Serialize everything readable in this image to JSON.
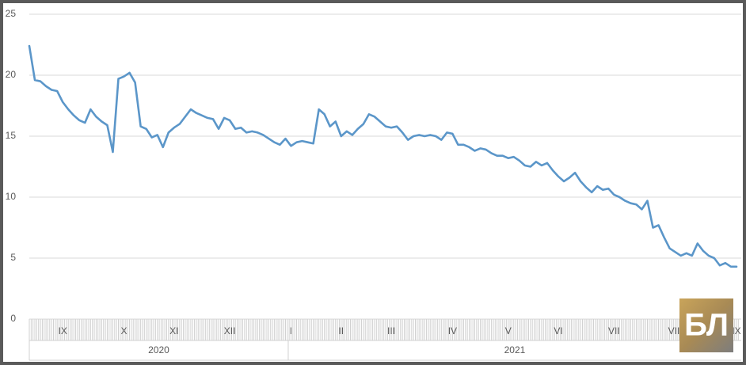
{
  "chart_data": {
    "type": "line",
    "color": "#5b96c9",
    "grid": true,
    "ylim": [
      0,
      25
    ],
    "yticks": [
      0,
      5,
      10,
      15,
      20,
      25
    ],
    "categories": [
      null,
      null,
      null,
      null,
      null,
      null,
      "IX",
      null,
      null,
      null,
      null,
      null,
      null,
      null,
      null,
      null,
      null,
      "X",
      null,
      null,
      null,
      null,
      null,
      null,
      null,
      null,
      "XI",
      null,
      null,
      null,
      null,
      null,
      null,
      null,
      null,
      null,
      "XII",
      null,
      null,
      null,
      null,
      null,
      null,
      null,
      null,
      null,
      null,
      "I",
      null,
      null,
      null,
      null,
      null,
      null,
      null,
      null,
      "II",
      null,
      null,
      null,
      null,
      null,
      null,
      null,
      null,
      "III",
      null,
      null,
      null,
      null,
      null,
      null,
      null,
      null,
      null,
      null,
      "IV",
      null,
      null,
      null,
      null,
      null,
      null,
      null,
      null,
      null,
      "V",
      null,
      null,
      null,
      null,
      null,
      null,
      null,
      null,
      "VI",
      null,
      null,
      null,
      null,
      null,
      null,
      null,
      null,
      null,
      "VII",
      null,
      null,
      null,
      null,
      null,
      null,
      null,
      null,
      null,
      null,
      "VIII",
      null,
      null,
      null,
      null,
      null,
      null,
      null,
      null,
      null,
      null,
      "IX"
    ],
    "year_categories": [
      "2020",
      null,
      null,
      null,
      null,
      null,
      null,
      null,
      null,
      null,
      null,
      null,
      null,
      null,
      null,
      null,
      null,
      null,
      null,
      null,
      null,
      null,
      null,
      null,
      null,
      null,
      null,
      null,
      null,
      null,
      null,
      null,
      null,
      null,
      null,
      null,
      null,
      null,
      null,
      null,
      null,
      null,
      null,
      null,
      null,
      null,
      null,
      "2021",
      null,
      null,
      null,
      null,
      null,
      null,
      null,
      null,
      null,
      null,
      null,
      null,
      null,
      null,
      null,
      null,
      null,
      null,
      null,
      null,
      null,
      null,
      null,
      null,
      null,
      null,
      null,
      null,
      null,
      null,
      null,
      null,
      null,
      null,
      null,
      null,
      null,
      null,
      null,
      null,
      null,
      null,
      null,
      null,
      null,
      null,
      null,
      null,
      null,
      null,
      null,
      null,
      null,
      null,
      null,
      null,
      null,
      null,
      null,
      null,
      null,
      null,
      null,
      null,
      null,
      null,
      null,
      null,
      null,
      null,
      null,
      null,
      null,
      null,
      null,
      null,
      null,
      null,
      null,
      null
    ],
    "values": [
      22.4,
      19.6,
      19.5,
      19.1,
      18.8,
      18.7,
      17.8,
      17.2,
      16.7,
      16.3,
      16.1,
      17.2,
      16.6,
      16.2,
      15.9,
      13.7,
      19.7,
      19.9,
      20.2,
      19.4,
      15.8,
      15.6,
      14.9,
      15.1,
      14.1,
      15.3,
      15.7,
      16.0,
      16.6,
      17.2,
      16.9,
      16.7,
      16.5,
      16.4,
      15.6,
      16.5,
      16.3,
      15.6,
      15.7,
      15.3,
      15.4,
      15.3,
      15.1,
      14.8,
      14.5,
      14.3,
      14.8,
      14.2,
      14.5,
      14.6,
      14.5,
      14.4,
      17.2,
      16.8,
      15.8,
      16.2,
      15.0,
      15.4,
      15.1,
      15.6,
      16.0,
      16.8,
      16.6,
      16.2,
      15.8,
      15.7,
      15.8,
      15.3,
      14.7,
      15.0,
      15.1,
      15.0,
      15.1,
      15.0,
      14.7,
      15.3,
      15.2,
      14.3,
      14.3,
      14.1,
      13.8,
      14.0,
      13.9,
      13.6,
      13.4,
      13.4,
      13.2,
      13.3,
      13.0,
      12.6,
      12.5,
      12.9,
      12.6,
      12.8,
      12.2,
      11.7,
      11.3,
      11.6,
      12.0,
      11.3,
      10.8,
      10.4,
      10.9,
      10.6,
      10.7,
      10.2,
      10.0,
      9.7,
      9.5,
      9.4,
      9.0,
      9.7,
      7.5,
      7.7,
      6.7,
      5.8,
      5.5,
      5.2,
      5.4,
      5.2,
      6.2,
      5.6,
      5.2,
      5.0,
      4.4,
      4.6,
      4.3,
      4.3
    ]
  },
  "logo": "БЛ"
}
